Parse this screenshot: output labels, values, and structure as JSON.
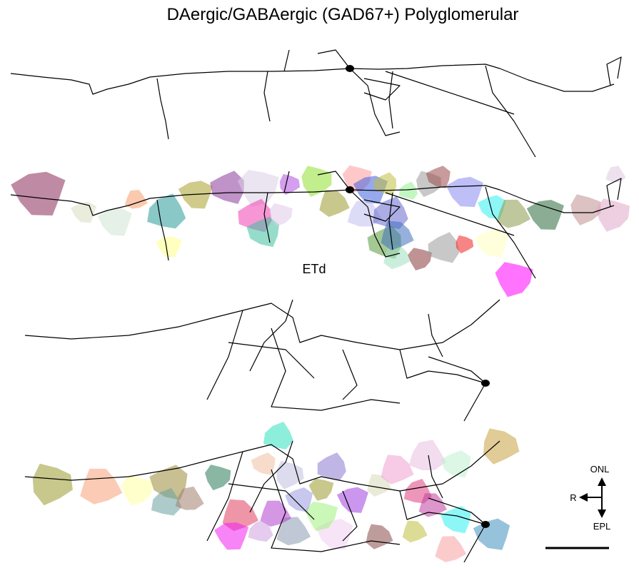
{
  "title": "DAergic/GABAergic (GAD67+) Polyglomerular",
  "panel_label": "ETd",
  "orientation": {
    "up": "ONL",
    "left": "R",
    "down": "EPL"
  }
}
